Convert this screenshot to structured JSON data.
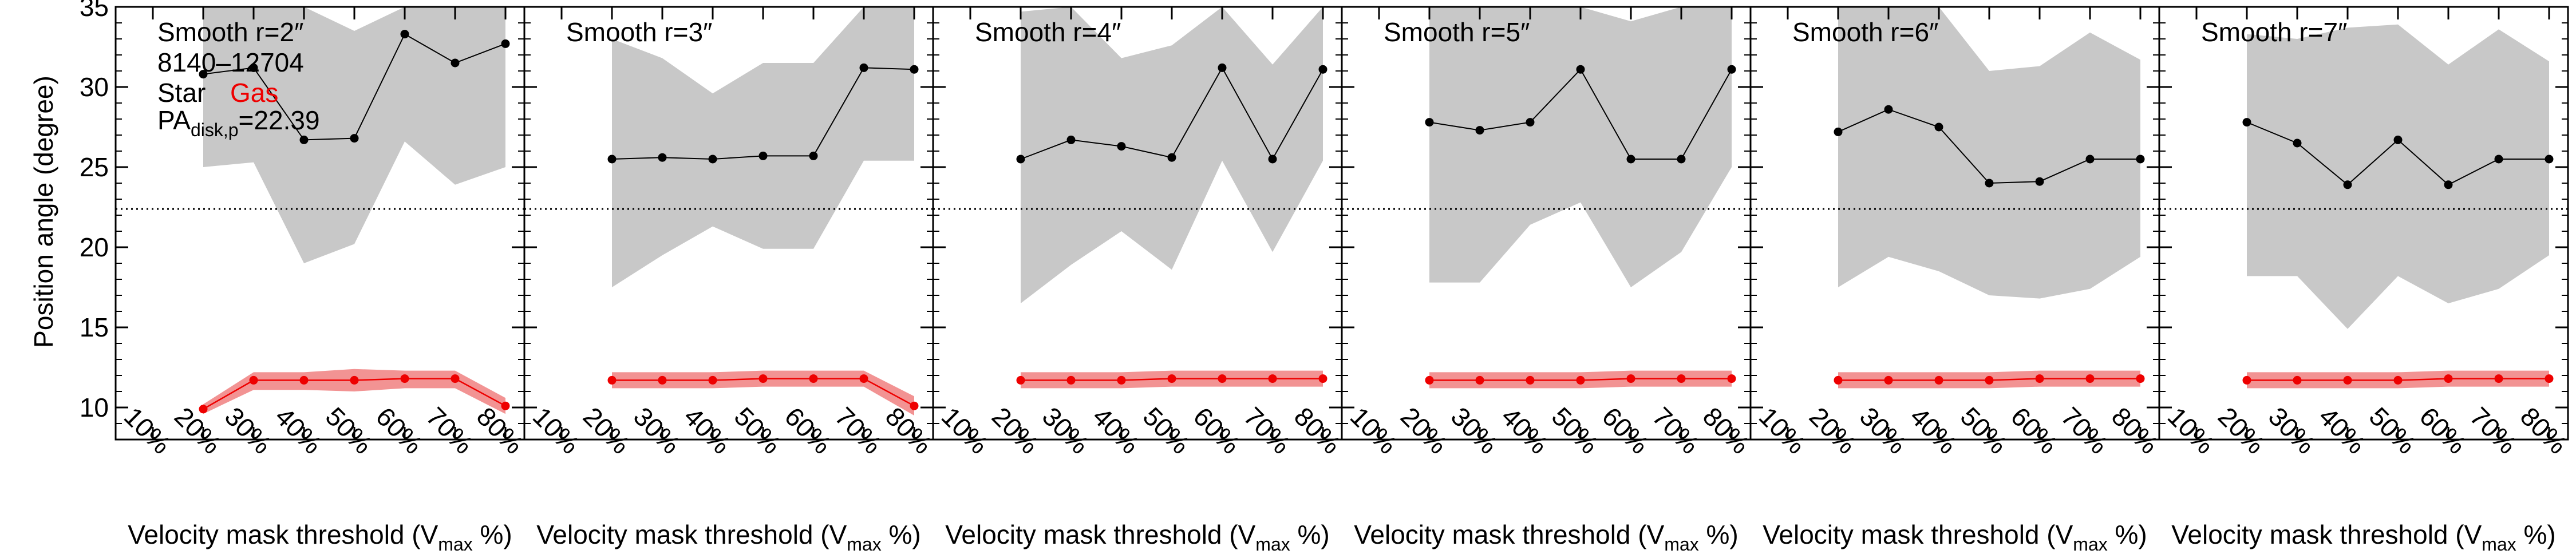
{
  "figure": {
    "ylabel": "Position angle (degree)",
    "xlabel_main": "Velocity mask threshold (V",
    "xlabel_sub": "max",
    "xlabel_end": " %)",
    "pa_label_main": "PA",
    "pa_label_sub": "disk,p",
    "pa_label_value": "=22.39",
    "galaxy_id": "8140–12704",
    "legend_star": "Star",
    "legend_gas": "Gas",
    "pa_disk": 22.39,
    "colors": {
      "star": "#000000",
      "star_band": "#c8c8c8",
      "gas": "#ee0000",
      "gas_band": "#f08080"
    }
  },
  "chart_data": [
    {
      "type": "line",
      "title": "Smooth r=2″",
      "x": [
        "10%",
        "20%",
        "30%",
        "40%",
        "50%",
        "60%",
        "70%",
        "80%"
      ],
      "ylim": [
        8,
        35
      ],
      "yticks": [
        10,
        15,
        20,
        25,
        30,
        35
      ],
      "series": [
        {
          "name": "Star",
          "values": [
            null,
            30.8,
            31.2,
            26.7,
            26.8,
            33.3,
            31.5,
            32.7
          ],
          "band_low": [
            null,
            25.0,
            25.3,
            19.0,
            20.2,
            26.6,
            23.9,
            25.0
          ],
          "band_high": [
            null,
            35.0,
            35.0,
            35.0,
            33.5,
            35.0,
            35.0,
            35.0
          ]
        },
        {
          "name": "Gas",
          "values": [
            null,
            9.9,
            11.7,
            11.7,
            11.7,
            11.8,
            11.8,
            10.1
          ],
          "band_low": [
            null,
            9.6,
            11.1,
            11.1,
            11.0,
            11.2,
            11.2,
            9.6
          ],
          "band_high": [
            null,
            10.2,
            12.2,
            12.2,
            12.4,
            12.3,
            12.3,
            10.6
          ]
        }
      ]
    },
    {
      "type": "line",
      "title": "Smooth r=3″",
      "x": [
        "10%",
        "20%",
        "30%",
        "40%",
        "50%",
        "60%",
        "70%",
        "80%"
      ],
      "ylim": [
        8,
        35
      ],
      "yticks": [
        10,
        15,
        20,
        25,
        30,
        35
      ],
      "series": [
        {
          "name": "Star",
          "values": [
            null,
            25.5,
            25.6,
            25.5,
            25.7,
            25.7,
            31.2,
            31.1
          ],
          "band_low": [
            null,
            17.5,
            19.5,
            21.3,
            19.9,
            19.9,
            25.4,
            25.4
          ],
          "band_high": [
            null,
            33.0,
            31.8,
            29.6,
            31.5,
            31.5,
            35.0,
            35.0
          ]
        },
        {
          "name": "Gas",
          "values": [
            null,
            11.7,
            11.7,
            11.7,
            11.8,
            11.8,
            11.8,
            10.1
          ],
          "band_low": [
            null,
            11.2,
            11.2,
            11.2,
            11.3,
            11.3,
            11.3,
            9.5
          ],
          "band_high": [
            null,
            12.2,
            12.2,
            12.2,
            12.3,
            12.3,
            12.3,
            10.7
          ]
        }
      ]
    },
    {
      "type": "line",
      "title": "Smooth r=4″",
      "x": [
        "10%",
        "20%",
        "30%",
        "40%",
        "50%",
        "60%",
        "70%",
        "80%"
      ],
      "ylim": [
        8,
        35
      ],
      "yticks": [
        10,
        15,
        20,
        25,
        30,
        35
      ],
      "series": [
        {
          "name": "Star",
          "values": [
            null,
            25.5,
            26.7,
            26.3,
            25.6,
            31.2,
            25.5,
            31.1
          ],
          "band_low": [
            null,
            16.5,
            18.9,
            21.0,
            18.6,
            25.4,
            19.7,
            25.4
          ],
          "band_high": [
            null,
            34.7,
            35.0,
            31.8,
            32.6,
            35.0,
            31.4,
            35.0
          ]
        },
        {
          "name": "Gas",
          "values": [
            null,
            11.7,
            11.7,
            11.7,
            11.8,
            11.8,
            11.8,
            11.8
          ],
          "band_low": [
            null,
            11.2,
            11.2,
            11.2,
            11.3,
            11.3,
            11.3,
            11.3
          ],
          "band_high": [
            null,
            12.2,
            12.2,
            12.2,
            12.3,
            12.3,
            12.3,
            12.3
          ]
        }
      ]
    },
    {
      "type": "line",
      "title": "Smooth r=5″",
      "x": [
        "10%",
        "20%",
        "30%",
        "40%",
        "50%",
        "60%",
        "70%",
        "80%"
      ],
      "ylim": [
        8,
        35
      ],
      "yticks": [
        10,
        15,
        20,
        25,
        30,
        35
      ],
      "series": [
        {
          "name": "Star",
          "values": [
            null,
            27.8,
            27.3,
            27.8,
            31.1,
            25.5,
            25.5,
            31.1
          ],
          "band_low": [
            null,
            17.8,
            17.8,
            21.4,
            22.8,
            17.5,
            19.7,
            25.0
          ],
          "band_high": [
            null,
            35.0,
            35.0,
            35.0,
            35.0,
            34.1,
            35.0,
            35.0
          ]
        },
        {
          "name": "Gas",
          "values": [
            null,
            11.7,
            11.7,
            11.7,
            11.7,
            11.8,
            11.8,
            11.8
          ],
          "band_low": [
            null,
            11.2,
            11.2,
            11.2,
            11.2,
            11.3,
            11.3,
            11.3
          ],
          "band_high": [
            null,
            12.2,
            12.2,
            12.2,
            12.2,
            12.3,
            12.3,
            12.3
          ]
        }
      ]
    },
    {
      "type": "line",
      "title": "Smooth r=6″",
      "x": [
        "10%",
        "20%",
        "30%",
        "40%",
        "50%",
        "60%",
        "70%",
        "80%"
      ],
      "ylim": [
        8,
        35
      ],
      "yticks": [
        10,
        15,
        20,
        25,
        30,
        35
      ],
      "series": [
        {
          "name": "Star",
          "values": [
            null,
            27.2,
            28.6,
            27.5,
            24.0,
            24.1,
            25.5,
            25.5
          ],
          "band_low": [
            null,
            17.5,
            19.4,
            18.5,
            17.0,
            16.8,
            17.4,
            19.4
          ],
          "band_high": [
            null,
            35.0,
            35.0,
            35.0,
            31.0,
            31.3,
            33.4,
            31.7
          ]
        },
        {
          "name": "Gas",
          "values": [
            null,
            11.7,
            11.7,
            11.7,
            11.7,
            11.8,
            11.8,
            11.8
          ],
          "band_low": [
            null,
            11.2,
            11.2,
            11.2,
            11.2,
            11.3,
            11.3,
            11.3
          ],
          "band_high": [
            null,
            12.2,
            12.2,
            12.2,
            12.2,
            12.3,
            12.3,
            12.3
          ]
        }
      ]
    },
    {
      "type": "line",
      "title": "Smooth r=7″",
      "x": [
        "10%",
        "20%",
        "30%",
        "40%",
        "50%",
        "60%",
        "70%",
        "80%"
      ],
      "ylim": [
        8,
        35
      ],
      "yticks": [
        10,
        15,
        20,
        25,
        30,
        35
      ],
      "series": [
        {
          "name": "Star",
          "values": [
            null,
            27.8,
            26.5,
            23.9,
            26.7,
            23.9,
            25.5,
            25.5
          ],
          "band_low": [
            null,
            18.2,
            18.2,
            14.9,
            18.2,
            16.5,
            17.4,
            19.5
          ],
          "band_high": [
            null,
            33.3,
            33.0,
            33.7,
            33.9,
            31.4,
            33.6,
            31.6
          ]
        },
        {
          "name": "Gas",
          "values": [
            null,
            11.7,
            11.7,
            11.7,
            11.7,
            11.8,
            11.8,
            11.8
          ],
          "band_low": [
            null,
            11.2,
            11.2,
            11.2,
            11.2,
            11.3,
            11.3,
            11.3
          ],
          "band_high": [
            null,
            12.2,
            12.2,
            12.2,
            12.2,
            12.3,
            12.3,
            12.3
          ]
        }
      ]
    }
  ]
}
